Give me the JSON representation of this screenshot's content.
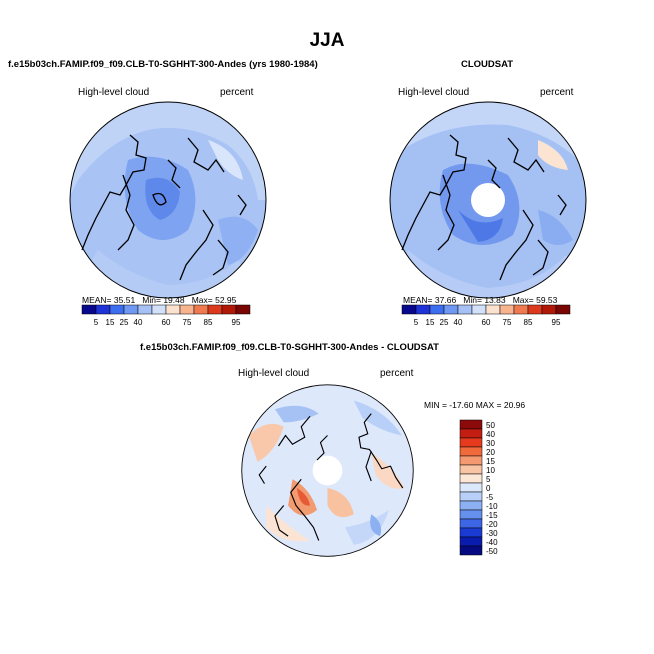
{
  "title": "JJA",
  "panels": [
    {
      "id": "model",
      "title": "f.e15b03ch.FAMIP.f09_f09.CLB-T0-SGHHT-300-Andes (yrs 1980-1984)",
      "variable": "High-level cloud",
      "units": "percent",
      "stats": {
        "mean_label": "MEAN=",
        "mean": "35.51",
        "min_label": "Min=",
        "min": "19.48",
        "max_label": "Max=",
        "max": "52.95"
      }
    },
    {
      "id": "obs",
      "title": "CLOUDSAT",
      "variable": "High-level cloud",
      "units": "percent",
      "stats": {
        "mean_label": "MEAN=",
        "mean": "37.66",
        "min_label": "Min=",
        "min": "13.83",
        "max_label": "Max=",
        "max": "59.53"
      }
    },
    {
      "id": "diff",
      "title": "f.e15b03ch.FAMIP.f09_f09.CLB-T0-SGHHT-300-Andes - CLOUDSAT",
      "variable": "High-level cloud",
      "units": "percent",
      "minmax_text": "MIN = -17.60 MAX =  20.96"
    }
  ],
  "colorbar_abs": {
    "colors": [
      "#08088c",
      "#1f33d6",
      "#3c6ff0",
      "#6f98f2",
      "#a5c1f6",
      "#d2e0fa",
      "#fbe2cf",
      "#f7b48f",
      "#f07a4f",
      "#dc3a1c",
      "#b01808",
      "#7a0505"
    ],
    "labels": [
      "5",
      "15",
      "25",
      "40",
      "60",
      "75",
      "85",
      "95"
    ]
  },
  "colorbar_diff": {
    "colors": [
      "#8c0a0a",
      "#c41e12",
      "#e63a1e",
      "#f06a3c",
      "#f59a70",
      "#f9c4a4",
      "#fce6d6",
      "#dce8fb",
      "#b8cff7",
      "#8cb0f2",
      "#6690ee",
      "#3c66e6",
      "#1a3ad4",
      "#0a1cae",
      "#050a80"
    ],
    "labels": [
      "50",
      "40",
      "30",
      "20",
      "15",
      "10",
      "5",
      "0",
      "-5",
      "-10",
      "-15",
      "-20",
      "-30",
      "-40",
      "-50"
    ]
  }
}
